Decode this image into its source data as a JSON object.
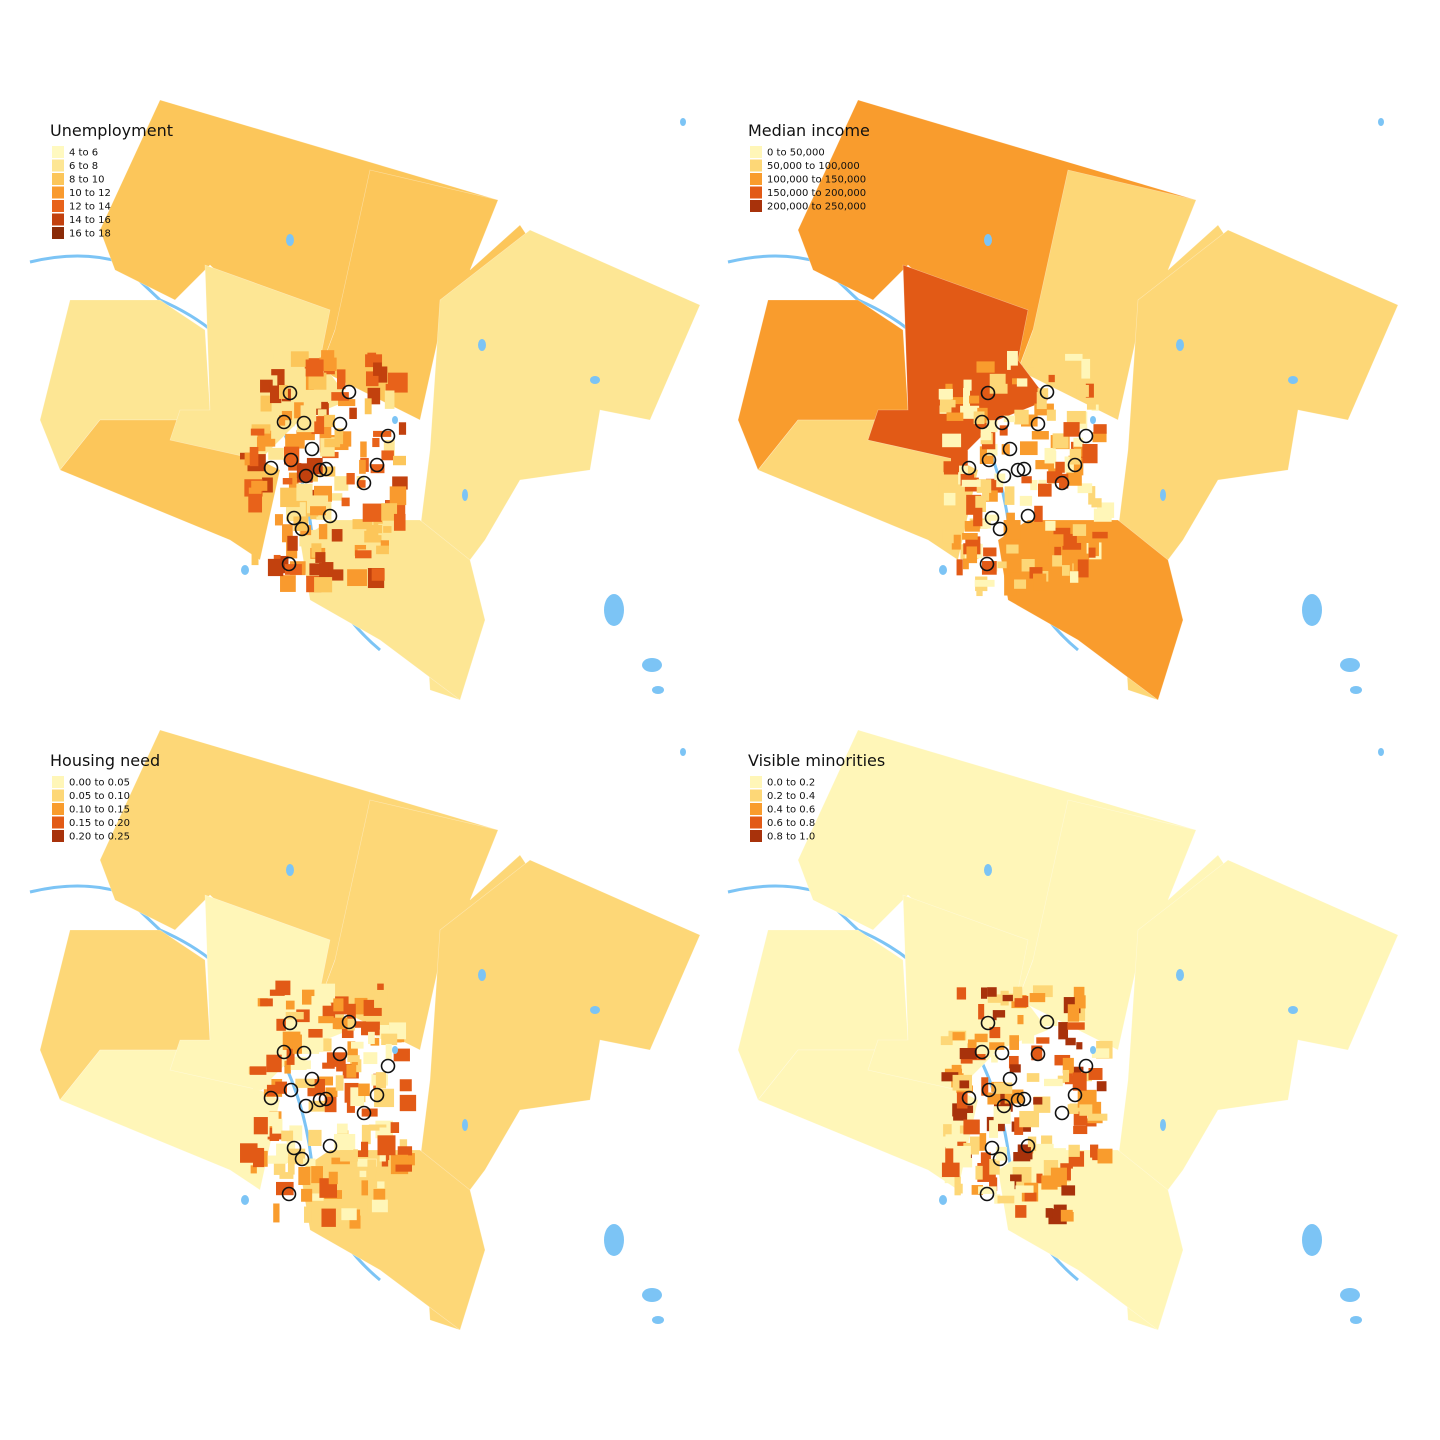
{
  "maps": [
    {
      "title": "Unemployment",
      "legend": [
        {
          "label": "4 to 6",
          "color": "#fff9c0"
        },
        {
          "label": "6 to 8",
          "color": "#fde694"
        },
        {
          "label": "8 to 10",
          "color": "#fcc65a"
        },
        {
          "label": "10 to 12",
          "color": "#f99a2e"
        },
        {
          "label": "12 to 14",
          "color": "#e8621a"
        },
        {
          "label": "14 to 16",
          "color": "#c2410e"
        },
        {
          "label": "16 to 18",
          "color": "#8a2b08"
        }
      ]
    },
    {
      "title": "Median income",
      "legend": [
        {
          "label": "0 to 50,000",
          "color": "#fff6b8"
        },
        {
          "label": "50,000 to 100,000",
          "color": "#fdd777"
        },
        {
          "label": "100,000 to 150,000",
          "color": "#f99c2d"
        },
        {
          "label": "150,000 to 200,000",
          "color": "#e25a16"
        },
        {
          "label": "200,000 to 250,000",
          "color": "#a8320b"
        }
      ]
    },
    {
      "title": "Housing need",
      "legend": [
        {
          "label": "0.00 to 0.05",
          "color": "#fff6b8"
        },
        {
          "label": "0.05 to 0.10",
          "color": "#fdd777"
        },
        {
          "label": "0.10 to 0.15",
          "color": "#f99c2d"
        },
        {
          "label": "0.15 to 0.20",
          "color": "#e25a16"
        },
        {
          "label": "0.20 to 0.25",
          "color": "#a8320b"
        }
      ]
    },
    {
      "title": "Visible minorities",
      "legend": [
        {
          "label": "0.0 to 0.2",
          "color": "#fff6b8"
        },
        {
          "label": "0.2 to 0.4",
          "color": "#fdd777"
        },
        {
          "label": "0.4 to 0.6",
          "color": "#f99c2d"
        },
        {
          "label": "0.6 to 0.8",
          "color": "#e25a16"
        },
        {
          "label": "0.8 to 1.0",
          "color": "#a8320b"
        }
      ]
    }
  ]
}
